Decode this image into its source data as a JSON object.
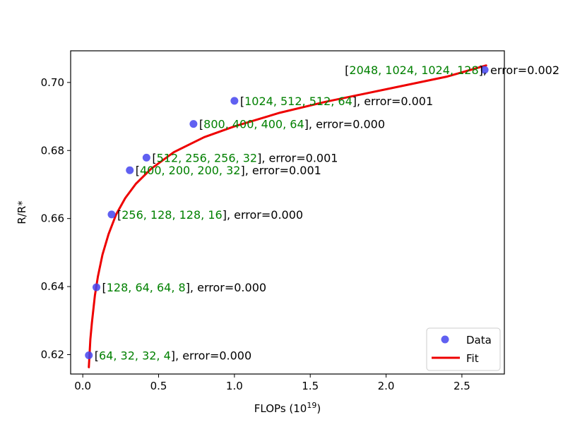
{
  "chart_data": {
    "type": "scatter",
    "xlabel": "FLOPs (10",
    "xlabel_sup": "19",
    "xlabel_close": ")",
    "ylabel": "R/R*",
    "xlim": [
      -0.08,
      2.78
    ],
    "ylim": [
      0.6143,
      0.7093
    ],
    "x_ticks": [
      0.0,
      0.5,
      1.0,
      1.5,
      2.0,
      2.5
    ],
    "x_tick_labels": [
      "0.0",
      "0.5",
      "1.0",
      "1.5",
      "2.0",
      "2.5"
    ],
    "y_ticks": [
      0.62,
      0.64,
      0.66,
      0.68,
      0.7
    ],
    "y_tick_labels": [
      "0.62",
      "0.64",
      "0.66",
      "0.68",
      "0.70"
    ],
    "grid": false,
    "legend_position": "lower-right",
    "series": [
      {
        "name": "Data",
        "kind": "scatter",
        "color": "#4444ee",
        "points": [
          {
            "x": 0.04,
            "y": 0.6198,
            "config": "64, 32, 32, 4",
            "error": "error=0.000"
          },
          {
            "x": 0.09,
            "y": 0.6398,
            "config": "128, 64, 64, 8",
            "error": "error=0.000"
          },
          {
            "x": 0.19,
            "y": 0.6612,
            "config": "256, 128, 128, 16",
            "error": "error=0.000"
          },
          {
            "x": 0.31,
            "y": 0.6742,
            "config": "400, 200, 200, 32",
            "error": "error=0.001"
          },
          {
            "x": 0.42,
            "y": 0.6779,
            "config": "512, 256, 256, 32",
            "error": "error=0.001"
          },
          {
            "x": 0.73,
            "y": 0.6878,
            "config": "800, 400, 400, 64",
            "error": "error=0.000"
          },
          {
            "x": 1.0,
            "y": 0.6946,
            "config": "1024, 512, 512, 64",
            "error": "error=0.001"
          },
          {
            "x": 2.65,
            "y": 0.7037,
            "config": "2048, 1024, 1024, 128",
            "error": "error=0.002"
          }
        ]
      },
      {
        "name": "Fit",
        "kind": "line",
        "color": "#ee0000",
        "x": [
          0.04,
          0.05,
          0.06,
          0.08,
          0.1,
          0.13,
          0.17,
          0.22,
          0.28,
          0.35,
          0.45,
          0.6,
          0.8,
          1.0,
          1.3,
          1.6,
          2.0,
          2.4,
          2.66
        ],
        "y": [
          0.6163,
          0.6245,
          0.6293,
          0.6374,
          0.643,
          0.6494,
          0.6554,
          0.6612,
          0.666,
          0.6702,
          0.6746,
          0.6795,
          0.6839,
          0.6871,
          0.6911,
          0.6943,
          0.698,
          0.7017,
          0.705
        ]
      }
    ],
    "annotation_style": {
      "config_color": "#008000",
      "text_color": "#000000"
    }
  }
}
